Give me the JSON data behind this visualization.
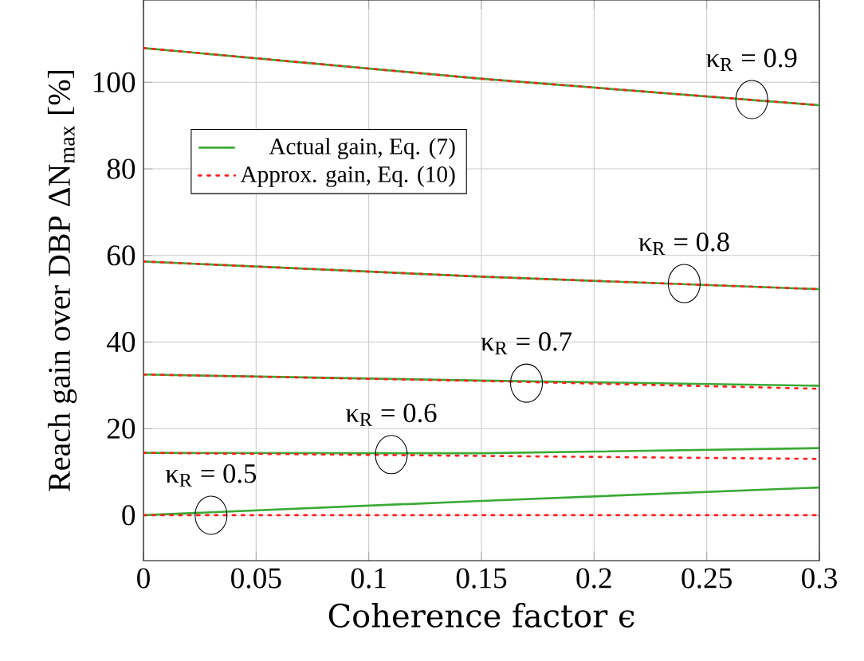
{
  "chart_data": {
    "type": "line",
    "xlabel": "Coherence factor ϵ",
    "ylabel": "Reach gain over DBP ΔN$_{max}$ [%]",
    "x": [
      0,
      0.15,
      0.3
    ],
    "series": [
      {
        "name": "Actual gain, Eq. (7)",
        "color": "#3aaa35",
        "line_style": "solid",
        "values": [
          107.9,
          100.8,
          94.7
        ]
      },
      {
        "name": "Approx. gain, Eq. (10)",
        "color": "#ff2020",
        "line_style": "dotted",
        "values": [
          107.9,
          100.8,
          94.7
        ]
      },
      {
        "color": "#3aaa35",
        "line_style": "solid",
        "values": [
          58.6,
          55.1,
          52.2
        ]
      },
      {
        "color": "#ff2020",
        "line_style": "dotted",
        "values": [
          58.6,
          55.1,
          52.2
        ]
      },
      {
        "color": "#3aaa35",
        "line_style": "solid",
        "values": [
          32.5,
          31.1,
          29.9
        ]
      },
      {
        "color": "#ff2020",
        "line_style": "dotted",
        "values": [
          32.5,
          31.0,
          29.2
        ]
      },
      {
        "color": "#3aaa35",
        "line_style": "solid",
        "values": [
          14.4,
          14.3,
          15.5
        ]
      },
      {
        "color": "#ff2020",
        "line_style": "dotted",
        "values": [
          14.4,
          13.7,
          13.0
        ]
      },
      {
        "color": "#3aaa35",
        "line_style": "solid",
        "values": [
          0,
          3.3,
          6.4
        ]
      },
      {
        "color": "#ff2020",
        "line_style": "dotted",
        "values": [
          0,
          0,
          0
        ]
      }
    ],
    "annotations": [
      {
        "text": "κ$_{R}$ = 0.9",
        "x": 0.27,
        "y": 96
      },
      {
        "text": "κ$_{R}$ = 0.8",
        "x": 0.24,
        "y": 53.5
      },
      {
        "text": "κ$_{R}$ = 0.7",
        "x": 0.17,
        "y": 30.5
      },
      {
        "text": "κ$_{R}$ = 0.6",
        "x": 0.11,
        "y": 14
      },
      {
        "text": "κ$_{R}$ = 0.5",
        "x": 0.03,
        "y": 0
      }
    ],
    "xlim": [
      0,
      0.3
    ],
    "ylim": [
      -10.5,
      119
    ],
    "xticks": [
      0,
      0.05,
      0.1,
      0.15,
      0.2,
      0.25,
      0.3
    ],
    "yticks": [
      0,
      20,
      40,
      60,
      80,
      100
    ],
    "grid": true,
    "legend": "left",
    "marker": "none"
  }
}
